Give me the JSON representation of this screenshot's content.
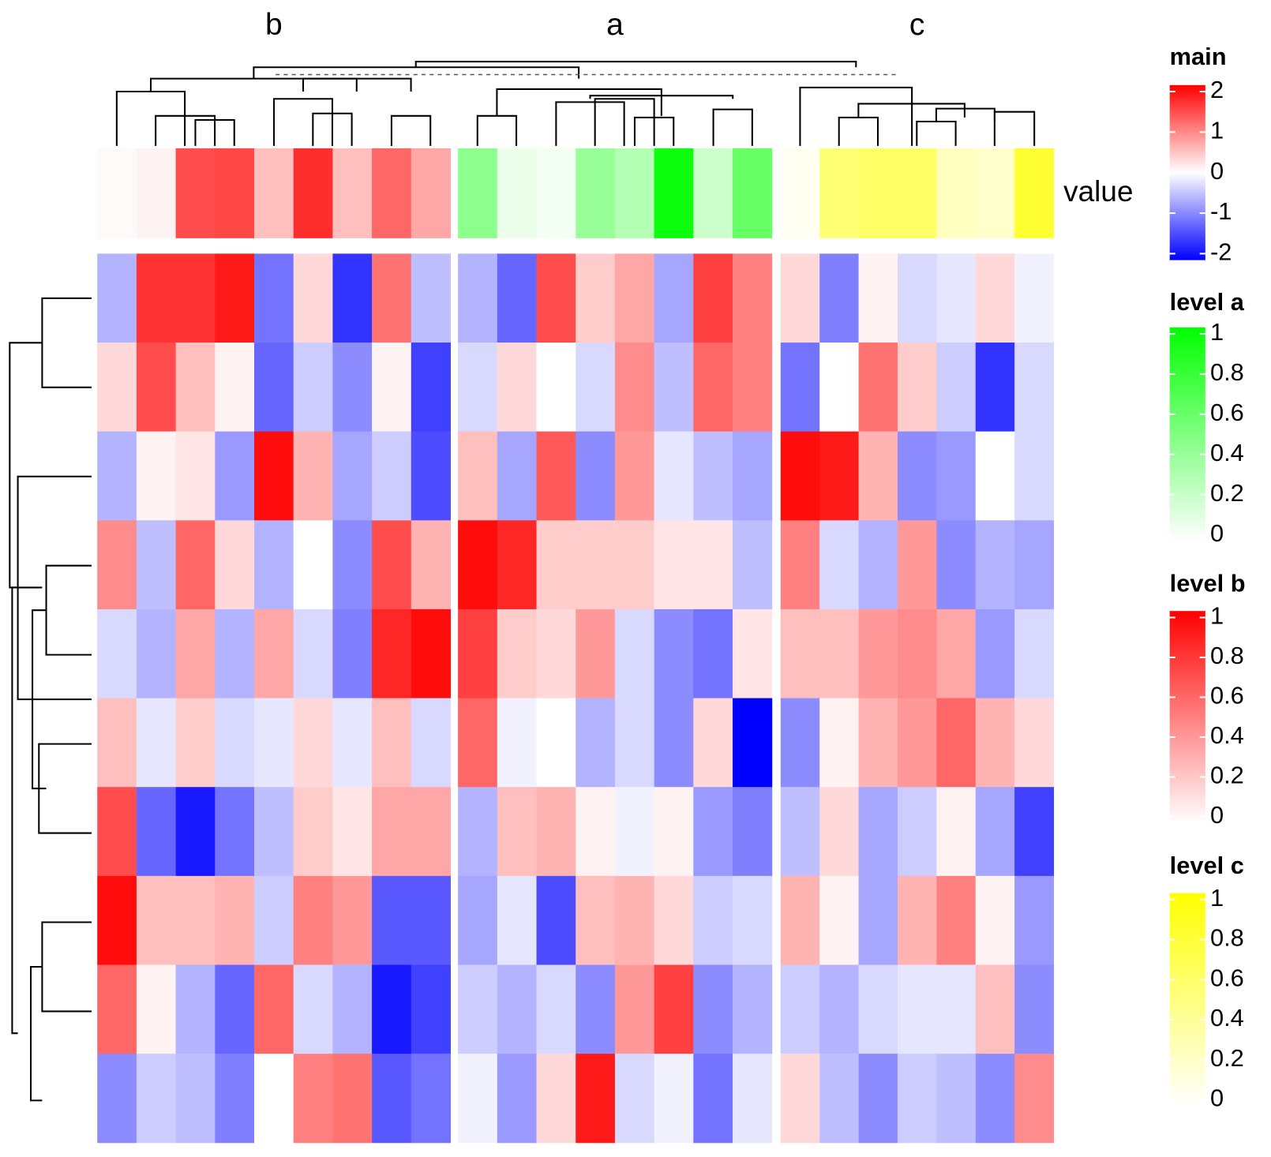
{
  "chart_data": {
    "type": "heatmap",
    "annotation_label": "value",
    "legend": {
      "title": "main",
      "colors": [
        "#0000ff",
        "#ffffff",
        "#ff0000"
      ],
      "lim": [
        -2,
        2
      ],
      "ticks": [
        2,
        1,
        0,
        -1,
        -2
      ]
    },
    "groups": [
      {
        "name": "b",
        "legend": {
          "title": "level b",
          "colors": [
            "#ffffff",
            "#ff0000"
          ],
          "lim": [
            0,
            1
          ],
          "ticks": [
            1,
            0.8,
            0.6,
            0.4,
            0.2,
            0
          ]
        },
        "annotation": [
          0.02,
          0.05,
          0.7,
          0.72,
          0.25,
          0.82,
          0.25,
          0.6,
          0.35
        ],
        "rows": [
          [
            -0.6,
            1.6,
            1.6,
            1.8,
            -1.1,
            0.3,
            -1.6,
            1.1,
            -0.5
          ],
          [
            0.3,
            1.4,
            0.5,
            0.1,
            -1.2,
            -0.4,
            -0.9,
            0.1,
            -1.5
          ],
          [
            -0.6,
            0.1,
            0.2,
            -0.8,
            1.9,
            0.6,
            -0.7,
            -0.4,
            -1.4
          ],
          [
            0.9,
            -0.5,
            1.2,
            0.3,
            -0.6,
            0.0,
            -0.9,
            1.4,
            0.6
          ],
          [
            -0.3,
            -0.6,
            0.7,
            -0.6,
            0.7,
            -0.3,
            -1.0,
            1.7,
            1.9
          ],
          [
            0.5,
            -0.2,
            0.4,
            -0.3,
            -0.2,
            0.3,
            -0.2,
            0.5,
            -0.3
          ],
          [
            1.4,
            -1.2,
            -1.8,
            -1.1,
            -0.5,
            0.4,
            0.2,
            0.7,
            0.7
          ],
          [
            1.9,
            0.5,
            0.5,
            0.6,
            -0.4,
            1.0,
            0.8,
            -1.3,
            -1.3
          ],
          [
            1.2,
            0.1,
            -0.6,
            -1.2,
            1.2,
            -0.3,
            -0.6,
            -1.8,
            -1.5
          ],
          [
            -0.9,
            -0.4,
            -0.5,
            -1.0,
            0.0,
            1.0,
            1.1,
            -1.3,
            -1.1
          ]
        ]
      },
      {
        "name": "a",
        "legend": {
          "title": "level a",
          "colors": [
            "#ffffff",
            "#00ff00"
          ],
          "lim": [
            0,
            1
          ],
          "ticks": [
            1,
            0.8,
            0.6,
            0.4,
            0.2,
            0
          ]
        },
        "annotation": [
          0.45,
          0.08,
          0.05,
          0.4,
          0.3,
          0.95,
          0.2,
          0.6
        ],
        "rows": [
          [
            -0.6,
            -1.2,
            1.4,
            0.4,
            0.7,
            -0.7,
            1.5,
            1.0
          ],
          [
            -0.3,
            0.3,
            0.0,
            -0.3,
            0.9,
            -0.5,
            1.2,
            1.0
          ],
          [
            0.5,
            -0.7,
            1.3,
            -0.9,
            0.8,
            -0.2,
            -0.5,
            -0.7
          ],
          [
            1.9,
            1.7,
            0.4,
            0.4,
            0.4,
            0.2,
            0.2,
            -0.5
          ],
          [
            1.5,
            0.4,
            0.3,
            0.8,
            -0.3,
            -0.9,
            -1.1,
            0.2
          ],
          [
            1.2,
            -0.1,
            0.0,
            -0.6,
            -0.3,
            -0.9,
            0.3,
            -2.0
          ],
          [
            -0.6,
            0.5,
            0.6,
            0.1,
            -0.1,
            0.1,
            -0.8,
            -1.0
          ],
          [
            -0.7,
            -0.2,
            -1.4,
            0.5,
            0.6,
            0.3,
            -0.4,
            -0.3
          ],
          [
            -0.4,
            -0.6,
            -0.3,
            -0.9,
            0.8,
            1.5,
            -0.9,
            -0.6
          ],
          [
            -0.1,
            -0.8,
            0.3,
            1.8,
            -0.3,
            -0.1,
            -1.1,
            -0.2
          ]
        ]
      },
      {
        "name": "c",
        "legend": {
          "title": "level c",
          "colors": [
            "#ffffff",
            "#ffff00"
          ],
          "lim": [
            0,
            1
          ],
          "ticks": [
            1,
            0.8,
            0.6,
            0.4,
            0.2,
            0
          ]
        },
        "annotation": [
          0.05,
          0.55,
          0.6,
          0.6,
          0.25,
          0.2,
          0.8
        ],
        "rows": [
          [
            0.3,
            -1.0,
            0.1,
            -0.3,
            -0.2,
            0.3,
            -0.1
          ],
          [
            -1.1,
            0.0,
            1.1,
            0.4,
            -0.4,
            -1.6,
            -0.3
          ],
          [
            1.9,
            1.8,
            0.6,
            -0.9,
            -0.8,
            0.0,
            -0.3
          ],
          [
            1.0,
            -0.3,
            -0.6,
            0.8,
            -0.9,
            -0.6,
            -0.7
          ],
          [
            0.5,
            0.5,
            0.8,
            0.9,
            0.7,
            -0.8,
            -0.3
          ],
          [
            -0.9,
            0.1,
            0.6,
            0.8,
            1.2,
            0.6,
            0.3
          ],
          [
            -0.5,
            0.3,
            -0.7,
            -0.4,
            0.1,
            -0.7,
            -1.5
          ],
          [
            0.6,
            0.1,
            -0.7,
            0.6,
            1.0,
            0.1,
            -0.8
          ],
          [
            -0.4,
            -0.6,
            -0.3,
            -0.2,
            -0.2,
            0.5,
            -0.9
          ],
          [
            0.3,
            -0.5,
            -0.9,
            -0.4,
            -0.5,
            -0.9,
            0.9
          ]
        ]
      }
    ]
  }
}
